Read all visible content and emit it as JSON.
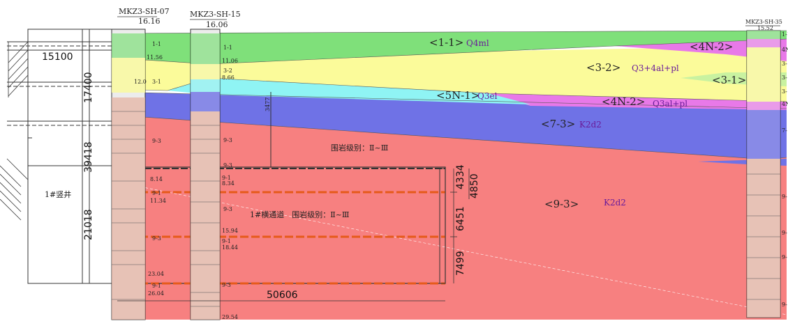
{
  "boreholes": [
    {
      "id": "MKZ3-SH-07",
      "elev": "16.16"
    },
    {
      "id": "MKZ3-SH-15",
      "elev": "16.06"
    },
    {
      "id": "MKZ3-SH-35",
      "elev": "15.52"
    }
  ],
  "layers": {
    "l1_1": {
      "label": "<1-1>",
      "sym": "Q4ml"
    },
    "l3_2": {
      "label": "<3-2>",
      "sym": "Q3+4al+pl"
    },
    "l3_1": {
      "label": "<3-1>"
    },
    "l4n2_top": {
      "label": "<4N-2>"
    },
    "l4n2": {
      "label": "<4N-2>",
      "sym": "Q3al+pl"
    },
    "l5n1": {
      "label": "<5N-1>",
      "sym": "Q3el"
    },
    "l7_3": {
      "label": "<7-3>",
      "sym": "K2d2"
    },
    "l9_3": {
      "label": "<9-3>",
      "sym": "K2d2"
    }
  },
  "annotations": {
    "rock_grade_top": "围岩级别：Ⅱ~Ⅲ",
    "passage": "1#横通道　围岩级别：Ⅱ~Ⅲ",
    "shaft": "1#竖井"
  },
  "dimensions": {
    "d15100": "15100",
    "d17400": "17400",
    "d39418": "39418",
    "d21018": "21018",
    "d4334": "4334",
    "d4850": "4850",
    "d6451": "6451",
    "d7499": "7499",
    "d50606": "50606",
    "d3477": "3477"
  },
  "bore1_labels": {
    "a": "1-1",
    "b": "11.56",
    "c": "3-1",
    "d": "12.0",
    "e": "9-3",
    "f": "8.14",
    "g": "9-1",
    "h": "11.34",
    "i": "9-3",
    "j": "23.04",
    "k": "9-1",
    "l": "26.04"
  },
  "bore2_labels": {
    "a": "1-1",
    "b": "11.06",
    "c": "3-2",
    "d": "8.66",
    "e": "9-3",
    "f": "9-3",
    "g": "9-1",
    "h": "8.34",
    "i": "9-3",
    "j": "15.94",
    "k": "9-1",
    "l": "18.44",
    "m": "9-3",
    "n": "29.54"
  },
  "bore3_labels": {
    "a": "1-1",
    "b": "4N",
    "c": "3-",
    "d": "3-",
    "e": "3-",
    "f": "4N",
    "g": "7-",
    "h": "9-",
    "i": "9-",
    "j": "9-",
    "k": "9-"
  },
  "colors": {
    "green": "#7fe07a",
    "yellow": "#fbfb9a",
    "magenta": "#e879e8",
    "cyan": "#8ff4f4",
    "blue": "#6f72e6",
    "red": "#f78080"
  }
}
